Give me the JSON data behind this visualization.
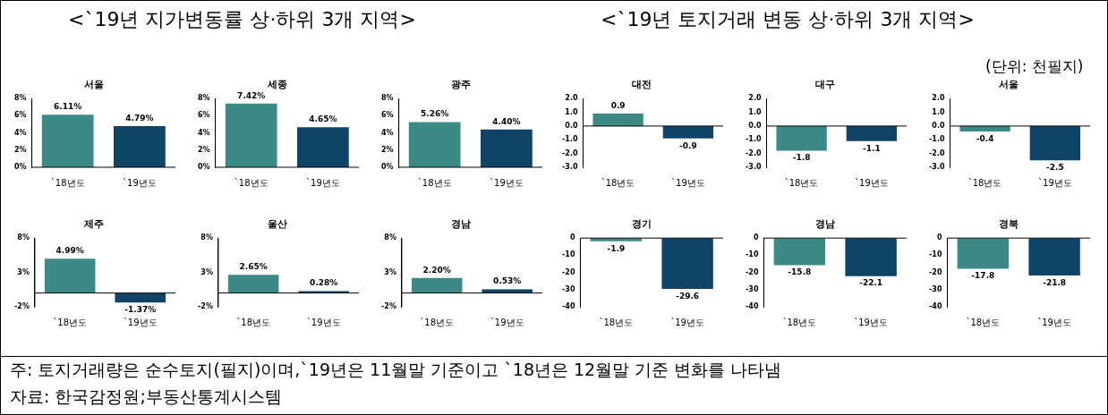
{
  "chart_data": [
    {
      "type": "other",
      "annotations": [
        "<`19년 지가변동률 상·하위 3개 지역>",
        "<`19년 토지거래 변동 상·하위 3개 지역>",
        "(단위: 천필지)"
      ]
    },
    {
      "type": "bar",
      "title": "서울",
      "categories": [
        "`18년도",
        "`19년도"
      ],
      "values": [
        6.11,
        4.79
      ],
      "colors": [
        "#3b8a85",
        "#0f4468"
      ],
      "value_labels": [
        "6.11%",
        "4.79%"
      ],
      "ylim": [
        0,
        8
      ],
      "yticks": [
        {
          "value": 0,
          "label": "0%"
        },
        {
          "value": 2,
          "label": "2%"
        },
        {
          "value": 4,
          "label": "4%"
        },
        {
          "value": 6,
          "label": "6%"
        },
        {
          "value": 8,
          "label": "8%"
        }
      ]
    },
    {
      "type": "bar",
      "title": "세종",
      "categories": [
        "`18년도",
        "`19년도"
      ],
      "values": [
        7.42,
        4.65
      ],
      "colors": [
        "#3b8a85",
        "#0f4468"
      ],
      "value_labels": [
        "7.42%",
        "4.65%"
      ],
      "ylim": [
        0,
        8
      ],
      "yticks": [
        {
          "value": 0,
          "label": "0%"
        },
        {
          "value": 2,
          "label": "2%"
        },
        {
          "value": 4,
          "label": "4%"
        },
        {
          "value": 6,
          "label": "6%"
        },
        {
          "value": 8,
          "label": "8%"
        }
      ]
    },
    {
      "type": "bar",
      "title": "광주",
      "categories": [
        "`18년도",
        "`19년도"
      ],
      "values": [
        5.26,
        4.4
      ],
      "colors": [
        "#3b8a85",
        "#0f4468"
      ],
      "value_labels": [
        "5.26%",
        "4.40%"
      ],
      "ylim": [
        0,
        8
      ],
      "yticks": [
        {
          "value": 0,
          "label": "0%"
        },
        {
          "value": 2,
          "label": "2%"
        },
        {
          "value": 4,
          "label": "4%"
        },
        {
          "value": 6,
          "label": "6%"
        },
        {
          "value": 8,
          "label": "8%"
        }
      ]
    },
    {
      "type": "bar",
      "title": "대전",
      "categories": [
        "`18년도",
        "`19년도"
      ],
      "values": [
        0.9,
        -0.9
      ],
      "colors": [
        "#3b8a85",
        "#0f4468"
      ],
      "data_labels": true,
      "ylim": [
        -3,
        2
      ],
      "yticks": [
        {
          "value": 2,
          "label": "2.0"
        },
        {
          "value": 1,
          "label": "1.0"
        },
        {
          "value": 0,
          "label": "0.0"
        },
        {
          "value": -1,
          "label": "-1.0"
        },
        {
          "value": -2,
          "label": "-2.0"
        },
        {
          "value": -3,
          "label": "-3.0"
        }
      ]
    },
    {
      "type": "bar",
      "title": "대구",
      "categories": [
        "`18년도",
        "`19년도"
      ],
      "values": [
        -1.8,
        -1.1
      ],
      "colors": [
        "#3b8a85",
        "#0f4468"
      ],
      "data_labels": true,
      "ylim": [
        -3,
        2
      ],
      "yticks": [
        {
          "value": 2,
          "label": "2.0"
        },
        {
          "value": 1,
          "label": "1.0"
        },
        {
          "value": 0,
          "label": "0.0"
        },
        {
          "value": -1,
          "label": "-1.0"
        },
        {
          "value": -2,
          "label": "-2.0"
        },
        {
          "value": -3,
          "label": "-3.0"
        }
      ]
    },
    {
      "type": "bar",
      "title": "서울",
      "categories": [
        "`18년도",
        "`19년도"
      ],
      "values": [
        -0.4,
        -2.5
      ],
      "colors": [
        "#3b8a85",
        "#0f4468"
      ],
      "data_labels": true,
      "ylim": [
        -3,
        2
      ],
      "yticks": [
        {
          "value": 2,
          "label": "2.0"
        },
        {
          "value": 1,
          "label": "1.0"
        },
        {
          "value": 0,
          "label": "0.0"
        },
        {
          "value": -1,
          "label": "-1.0"
        },
        {
          "value": -2,
          "label": "-2.0"
        },
        {
          "value": -3,
          "label": "-3.0"
        }
      ]
    },
    {
      "type": "bar",
      "title": "제주",
      "categories": [
        "`18년도",
        "`19년도"
      ],
      "values": [
        4.99,
        -1.37
      ],
      "colors": [
        "#3b8a85",
        "#0f4468"
      ],
      "value_labels": [
        "4.99%",
        "-1.37%"
      ],
      "ylim": [
        -2,
        8
      ],
      "yticks": [
        {
          "value": -2,
          "label": "-2%"
        },
        {
          "value": 3,
          "label": "3%"
        },
        {
          "value": 8,
          "label": "8%"
        }
      ]
    },
    {
      "type": "bar",
      "title": "울산",
      "categories": [
        "`18년도",
        "`19년도"
      ],
      "values": [
        2.65,
        0.28
      ],
      "colors": [
        "#3b8a85",
        "#0f4468"
      ],
      "value_labels": [
        "2.65%",
        "0.28%"
      ],
      "ylim": [
        -2,
        8
      ],
      "yticks": [
        {
          "value": -2,
          "label": "-2%"
        },
        {
          "value": 3,
          "label": "3%"
        },
        {
          "value": 8,
          "label": "8%"
        }
      ]
    },
    {
      "type": "bar",
      "title": "경남",
      "categories": [
        "`18년도",
        "`19년도"
      ],
      "values": [
        2.2,
        0.53
      ],
      "colors": [
        "#3b8a85",
        "#0f4468"
      ],
      "value_labels": [
        "2.20%",
        "0.53%"
      ],
      "ylim": [
        -2,
        8
      ],
      "yticks": [
        {
          "value": -2,
          "label": "-2%"
        },
        {
          "value": 3,
          "label": "3%"
        },
        {
          "value": 8,
          "label": "8%"
        }
      ]
    },
    {
      "type": "bar",
      "title": "경기",
      "categories": [
        "`18년도",
        "`19년도"
      ],
      "values": [
        -1.9,
        -29.6
      ],
      "colors": [
        "#3b8a85",
        "#0f4468"
      ],
      "data_labels": true,
      "ylim": [
        -40,
        0
      ],
      "yticks": [
        0,
        -10,
        -20,
        -30,
        -40
      ]
    },
    {
      "type": "bar",
      "title": "경남",
      "categories": [
        "`18년도",
        "`19년도"
      ],
      "values": [
        -15.8,
        -22.1
      ],
      "colors": [
        "#3b8a85",
        "#0f4468"
      ],
      "data_labels": true,
      "ylim": [
        -40,
        0
      ],
      "yticks": [
        0,
        -10,
        -20,
        -30,
        -40
      ]
    },
    {
      "type": "bar",
      "title": "경북",
      "categories": [
        "`18년도",
        "`19년도"
      ],
      "values": [
        -17.8,
        -21.8
      ],
      "colors": [
        "#3b8a85",
        "#0f4468"
      ],
      "data_labels": true,
      "ylim": [
        -40,
        0
      ],
      "yticks": [
        0,
        -10,
        -20,
        -30,
        -40
      ]
    },
    {
      "type": "other",
      "annotations": [
        "주: 토지거래량은 순수토지(필지)이며,`19년은 11월말 기준이고 `18년은 12월말 기준 변화를 나타냄",
        "자료: 한국감정원;부동산통계시스템"
      ]
    }
  ]
}
